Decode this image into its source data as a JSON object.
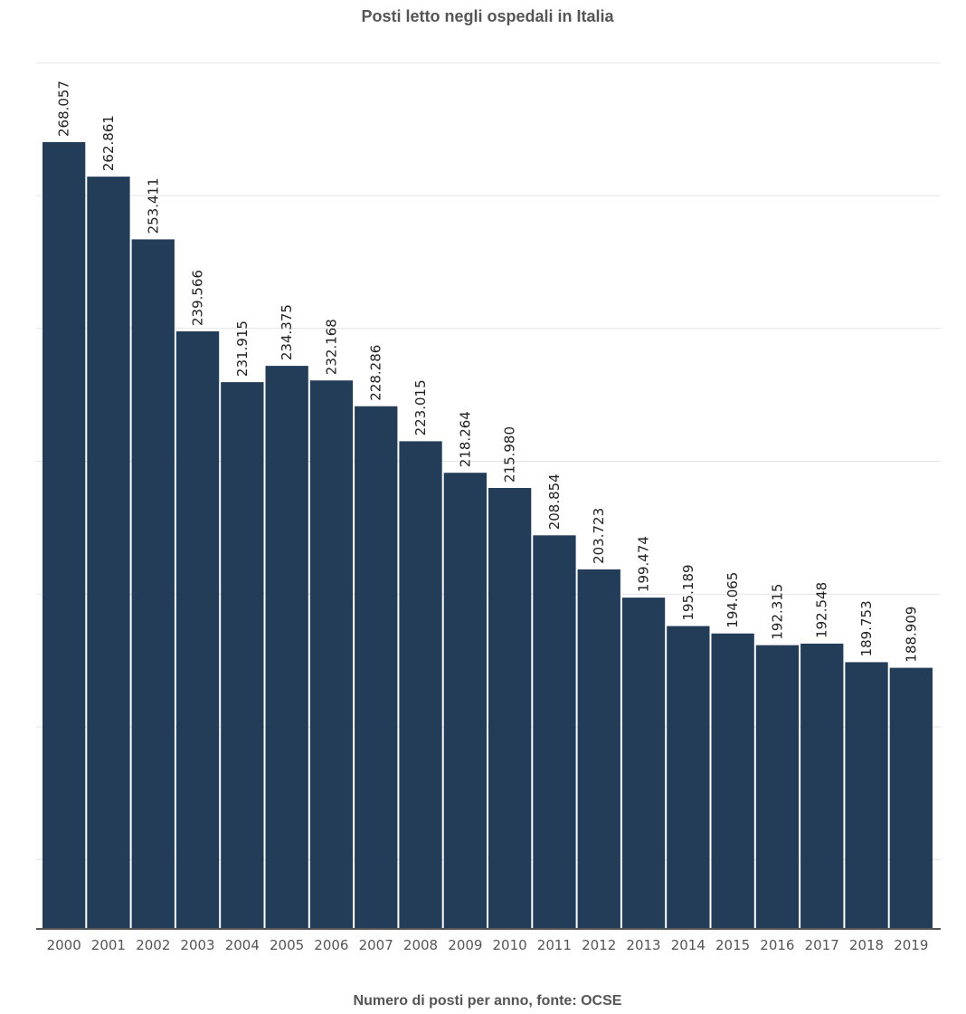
{
  "chart_data": {
    "type": "bar",
    "title": "Posti letto negli ospedali in Italia",
    "caption": "Numero di posti per anno, fonte: OCSE",
    "categories": [
      "2000",
      "2001",
      "2002",
      "2003",
      "2004",
      "2005",
      "2006",
      "2007",
      "2008",
      "2009",
      "2010",
      "2011",
      "2012",
      "2013",
      "2014",
      "2015",
      "2016",
      "2017",
      "2018",
      "2019"
    ],
    "values": [
      268057,
      262861,
      253411,
      239566,
      231915,
      234375,
      232168,
      228286,
      223015,
      218264,
      215980,
      208854,
      203723,
      199474,
      195189,
      194065,
      192315,
      192548,
      189753,
      188909
    ],
    "value_labels": [
      "268.057",
      "262.861",
      "253.411",
      "239.566",
      "231.915",
      "234.375",
      "232.168",
      "228.286",
      "223.015",
      "218.264",
      "215.980",
      "208.854",
      "203.723",
      "199.474",
      "195.189",
      "194.065",
      "192.315",
      "192.548",
      "189.753",
      "188.909"
    ],
    "ylim": [
      150000,
      280000
    ],
    "y_gridlines": [
      160000,
      180000,
      200000,
      220000,
      240000,
      260000,
      280000
    ],
    "grid": true,
    "bar_color": "#233d59",
    "xlabel": "",
    "ylabel": ""
  }
}
